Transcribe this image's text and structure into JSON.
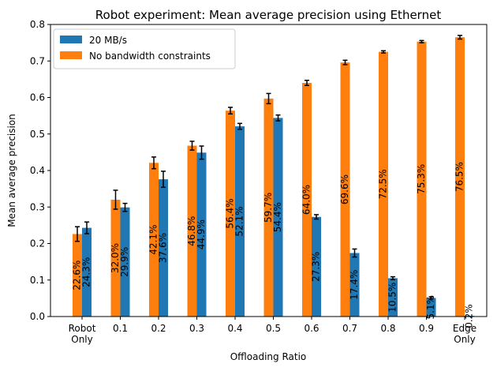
{
  "chart_data": {
    "type": "bar",
    "title": "Robot experiment: Mean average precision using Ethernet",
    "xlabel": "Offloading Ratio",
    "ylabel": "Mean average precision",
    "ylim": [
      0,
      0.8
    ],
    "yticks": [
      "0.0",
      "0.1",
      "0.2",
      "0.3",
      "0.4",
      "0.5",
      "0.6",
      "0.7",
      "0.8"
    ],
    "categories": [
      [
        "Robot",
        "Only"
      ],
      [
        "0.1"
      ],
      [
        "0.2"
      ],
      [
        "0.3"
      ],
      [
        "0.4"
      ],
      [
        "0.5"
      ],
      [
        "0.6"
      ],
      [
        "0.7"
      ],
      [
        "0.8"
      ],
      [
        "0.9"
      ],
      [
        "Edge",
        "Only"
      ]
    ],
    "legend_position": "upper-left",
    "series": [
      {
        "name": "20 MB/s",
        "color": "#1f77b4",
        "values": [
          0.243,
          0.299,
          0.376,
          0.449,
          0.521,
          0.544,
          0.273,
          0.174,
          0.105,
          0.051,
          0.002
        ],
        "errors": [
          0.016,
          0.011,
          0.022,
          0.018,
          0.008,
          0.008,
          0.006,
          0.011,
          0.004,
          0.003,
          0
        ],
        "labels": [
          "24.3%",
          "29.9%",
          "37.6%",
          "44.9%",
          "52.1%",
          "54.4%",
          "27.3%",
          "17.4%",
          "10.5%",
          "5.1%",
          "0.2%"
        ]
      },
      {
        "name": "No bandwidth constraints",
        "color": "#ff7f0e",
        "values": [
          0.226,
          0.32,
          0.421,
          0.468,
          0.564,
          0.597,
          0.64,
          0.696,
          0.725,
          0.753,
          0.765
        ],
        "errors": [
          0.02,
          0.026,
          0.016,
          0.012,
          0.009,
          0.014,
          0.007,
          0.006,
          0.003,
          0.003,
          0.005
        ],
        "labels": [
          "22.6%",
          "32.0%",
          "42.1%",
          "46.8%",
          "56.4%",
          "59.7%",
          "64.0%",
          "69.6%",
          "72.5%",
          "75.3%",
          "76.5%"
        ]
      }
    ]
  }
}
